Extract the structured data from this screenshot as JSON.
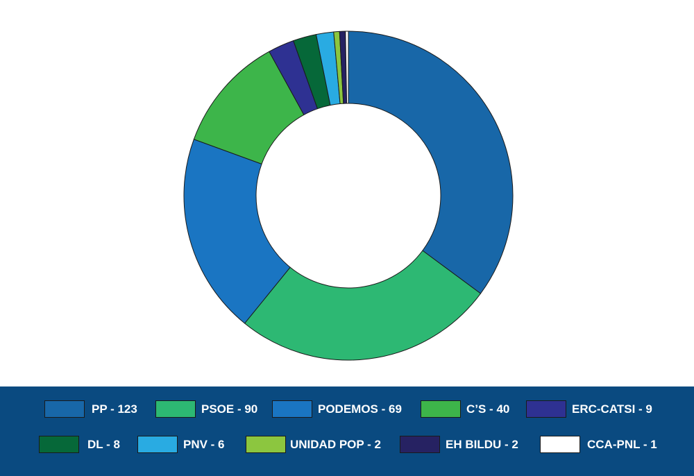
{
  "chart_data": {
    "type": "pie",
    "donut": true,
    "legend_position": "bottom",
    "slices": [
      {
        "label": "PP - 123",
        "party": "PP",
        "value": 123,
        "color": "#1867a8"
      },
      {
        "label": "PSOE - 90",
        "party": "PSOE",
        "value": 90,
        "color": "#2db873"
      },
      {
        "label": "PODEMOS - 69",
        "party": "PODEMOS",
        "value": 69,
        "color": "#1a75c2"
      },
      {
        "label": "C’S - 40",
        "party": "C’S",
        "value": 40,
        "color": "#3db54a"
      },
      {
        "label": "ERC-CATSI - 9",
        "party": "ERC-CATSI",
        "value": 9,
        "color": "#2e3192"
      },
      {
        "label": "DL - 8",
        "party": "DL",
        "value": 8,
        "color": "#066839"
      },
      {
        "label": "PNV - 6",
        "party": "PNV",
        "value": 6,
        "color": "#29abe2"
      },
      {
        "label": "UNIDAD POP - 2",
        "party": "UNIDAD POP",
        "value": 2,
        "color": "#8cc63f"
      },
      {
        "label": "EH BILDU - 2",
        "party": "EH BILDU",
        "value": 2,
        "color": "#262262"
      },
      {
        "label": "CCA-PNL - 1",
        "party": "CCA-PNL",
        "value": 1,
        "color": "#ffffff"
      }
    ]
  },
  "legend_bar_color": "#0a4a80"
}
